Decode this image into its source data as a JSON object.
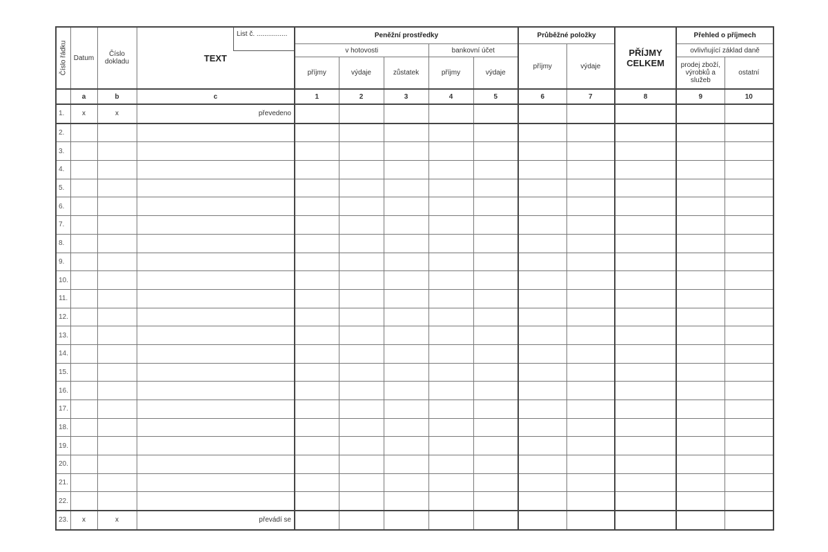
{
  "header": {
    "row_number": "Číslo řádku",
    "date": "Datum",
    "doc_number": "Číslo dokladu",
    "text": "TEXT",
    "sheet": "List č. ................",
    "money": "Peněžní prostředky",
    "cash": "v hotovosti",
    "bank": "bankovní účet",
    "cash_in": "příjmy",
    "cash_out": "výdaje",
    "cash_balance": "zůstatek",
    "bank_in": "příjmy",
    "bank_out": "výdaje",
    "transit": "Průběžné položky",
    "transit_in": "příjmy",
    "transit_out": "výdaje",
    "total_income": "PŘÍJMY CELKEM",
    "income_overview": "Přehled o příjmech",
    "tax_base": "ovlivňující základ daně",
    "sales": "prodej zboží, výrobků a služeb",
    "other": "ostatní"
  },
  "column_letters": [
    "a",
    "b",
    "c",
    "1",
    "2",
    "3",
    "4",
    "5",
    "6",
    "7",
    "8",
    "9",
    "10"
  ],
  "rows": [
    {
      "n": "1.",
      "a": "x",
      "b": "x",
      "c": "převedeno"
    },
    {
      "n": "2."
    },
    {
      "n": "3."
    },
    {
      "n": "4."
    },
    {
      "n": "5."
    },
    {
      "n": "6."
    },
    {
      "n": "7."
    },
    {
      "n": "8."
    },
    {
      "n": "9."
    },
    {
      "n": "10."
    },
    {
      "n": "11."
    },
    {
      "n": "12."
    },
    {
      "n": "13."
    },
    {
      "n": "14."
    },
    {
      "n": "15."
    },
    {
      "n": "16."
    },
    {
      "n": "17."
    },
    {
      "n": "18."
    },
    {
      "n": "19."
    },
    {
      "n": "20."
    },
    {
      "n": "21."
    },
    {
      "n": "22."
    },
    {
      "n": "23.",
      "a": "x",
      "b": "x",
      "c": "převádí se"
    }
  ]
}
